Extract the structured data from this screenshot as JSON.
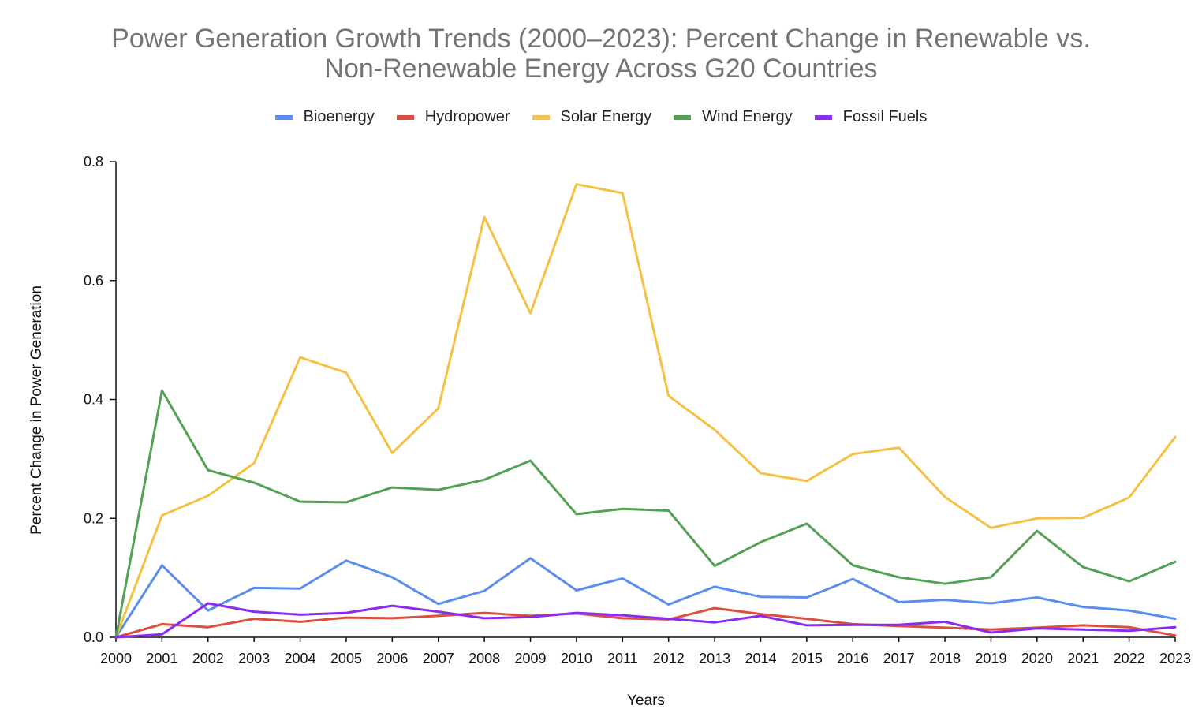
{
  "chart_data": {
    "type": "line",
    "title": "Power Generation Growth Trends (2000–2023): Percent Change in Renewable vs. Non-Renewable Energy Across G20 Countries",
    "title_lines": [
      "Power Generation Growth Trends (2000–2023): Percent Change in Renewable vs.",
      "Non-Renewable Energy Across G20 Countries"
    ],
    "xlabel": "Years",
    "ylabel": "Percent Change in Power Generation",
    "legend_position": "top-center",
    "grid": false,
    "ylim": [
      0,
      0.8
    ],
    "yticks": [
      "0.0",
      "0.2",
      "0.4",
      "0.6",
      "0.8"
    ],
    "ytick_values": [
      0,
      0.2,
      0.4,
      0.6,
      0.8
    ],
    "x": [
      "2000",
      "2001",
      "2002",
      "2003",
      "2004",
      "2005",
      "2006",
      "2007",
      "2008",
      "2009",
      "2010",
      "2011",
      "2012",
      "2013",
      "2014",
      "2015",
      "2016",
      "2017",
      "2018",
      "2019",
      "2020",
      "2021",
      "2022",
      "2023"
    ],
    "series": [
      {
        "name": "Bioenergy",
        "color": "#5b8def",
        "values": [
          0,
          0.121,
          0.045,
          0.083,
          0.082,
          0.129,
          0.101,
          0.056,
          0.078,
          0.133,
          0.079,
          0.099,
          0.055,
          0.085,
          0.068,
          0.067,
          0.098,
          0.059,
          0.063,
          0.057,
          0.067,
          0.051,
          0.045,
          0.031
        ]
      },
      {
        "name": "Hydropower",
        "color": "#d9503f",
        "values": [
          0,
          0.022,
          0.017,
          0.031,
          0.026,
          0.033,
          0.032,
          0.036,
          0.041,
          0.036,
          0.04,
          0.032,
          0.03,
          0.049,
          0.039,
          0.031,
          0.022,
          0.019,
          0.016,
          0.013,
          0.016,
          0.02,
          0.017,
          0.003
        ]
      },
      {
        "name": "Solar Energy",
        "color": "#f4c145",
        "values": [
          0,
          0.205,
          0.238,
          0.293,
          0.471,
          0.445,
          0.31,
          0.385,
          0.707,
          0.545,
          0.762,
          0.747,
          0.406,
          0.349,
          0.276,
          0.263,
          0.308,
          0.319,
          0.236,
          0.184,
          0.2,
          0.201,
          0.235,
          0.337
        ]
      },
      {
        "name": "Wind Energy",
        "color": "#53a153",
        "values": [
          0,
          0.415,
          0.281,
          0.26,
          0.228,
          0.227,
          0.252,
          0.248,
          0.265,
          0.297,
          0.207,
          0.216,
          0.213,
          0.12,
          0.16,
          0.191,
          0.121,
          0.101,
          0.09,
          0.101,
          0.179,
          0.118,
          0.094,
          0.127
        ]
      },
      {
        "name": "Fossil Fuels",
        "color": "#8a2bf0",
        "values": [
          0,
          0.005,
          0.057,
          0.043,
          0.038,
          0.041,
          0.053,
          0.043,
          0.032,
          0.034,
          0.041,
          0.037,
          0.031,
          0.025,
          0.036,
          0.02,
          0.021,
          0.021,
          0.026,
          0.008,
          0.015,
          0.013,
          0.011,
          0.017
        ]
      }
    ]
  }
}
